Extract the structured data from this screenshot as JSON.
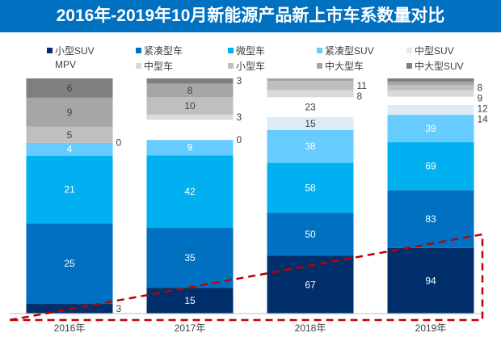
{
  "chart_data": {
    "type": "bar",
    "stacked": true,
    "title": "2016年-2019年10月新能源产品新上市车系数量对比",
    "categories": [
      "2016年",
      "2017年",
      "2018年",
      "2019年"
    ],
    "series": [
      {
        "name": "小型SUV",
        "color": "#002F6C",
        "values": [
          3,
          15,
          67,
          94
        ]
      },
      {
        "name": "紧凑型车",
        "color": "#0070C0",
        "values": [
          25,
          35,
          50,
          83
        ]
      },
      {
        "name": "微型车",
        "color": "#00B0F0",
        "values": [
          21,
          42,
          58,
          69
        ]
      },
      {
        "name": "紧凑型SUV",
        "color": "#66CCFF",
        "values": [
          4,
          9,
          38,
          39
        ]
      },
      {
        "name": "中型SUV",
        "color": "#DDEBF7",
        "values": [
          null,
          0,
          15,
          14
        ]
      },
      {
        "name": "MPV",
        "color": "#FFFFFF",
        "values": [
          null,
          null,
          23,
          12
        ]
      },
      {
        "name": "中型车",
        "color": "#D9D9D9",
        "values": [
          0,
          3,
          8,
          9
        ]
      },
      {
        "name": "小型车",
        "color": "#BFBFBF",
        "values": [
          5,
          10,
          11,
          8
        ]
      },
      {
        "name": "中大型车",
        "color": "#A6A6A6",
        "values": [
          9,
          8,
          null,
          null
        ]
      },
      {
        "name": "中大型SUV",
        "color": "#7F7F7F",
        "values": [
          6,
          3,
          null,
          null
        ]
      }
    ],
    "legend": "top",
    "grid": false,
    "annotation": "red dashed triangle indicating growth trend",
    "annotation_color": "#C00000"
  }
}
